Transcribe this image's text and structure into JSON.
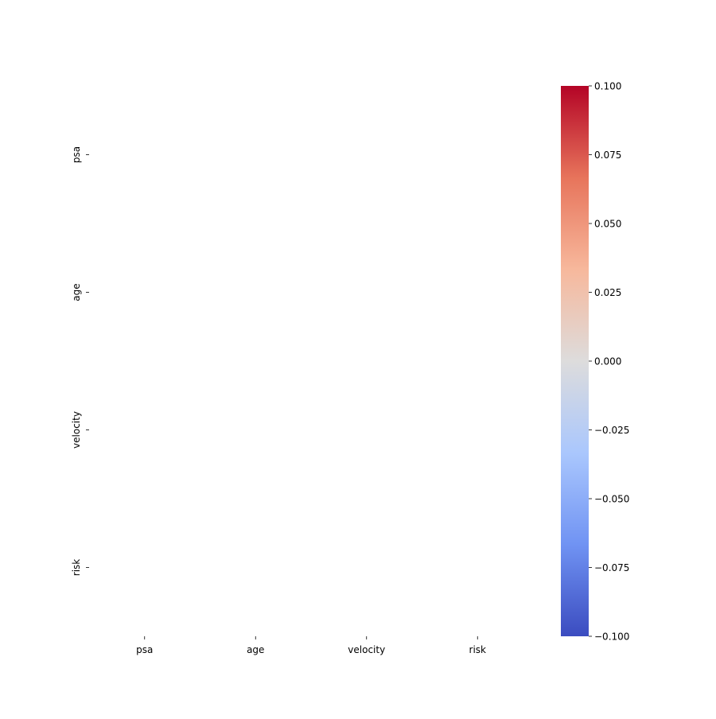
{
  "chart_data": {
    "type": "heatmap",
    "title": "",
    "xlabel": "",
    "ylabel": "",
    "x_categories": [
      "psa",
      "age",
      "velocity",
      "risk"
    ],
    "y_categories": [
      "psa",
      "age",
      "velocity",
      "risk"
    ],
    "values": [
      [
        null,
        null,
        null,
        null
      ],
      [
        null,
        null,
        null,
        null
      ],
      [
        null,
        null,
        null,
        null
      ],
      [
        null,
        null,
        null,
        null
      ]
    ],
    "grid": false,
    "colorbar": {
      "colormap": "coolwarm",
      "range": [
        -0.1,
        0.1
      ],
      "ticks": [
        0.1,
        0.075,
        0.05,
        0.025,
        0.0,
        -0.025,
        -0.05,
        -0.075,
        -0.1
      ],
      "tick_labels": [
        "0.100",
        "0.075",
        "0.050",
        "0.025",
        "0.000",
        "−0.025",
        "−0.050",
        "−0.075",
        "−0.100"
      ],
      "colors": [
        "#3b4cc0",
        "#7093f3",
        "#aac7fd",
        "#dddcdc",
        "#f7b89c",
        "#e7745b",
        "#b40426"
      ]
    }
  }
}
